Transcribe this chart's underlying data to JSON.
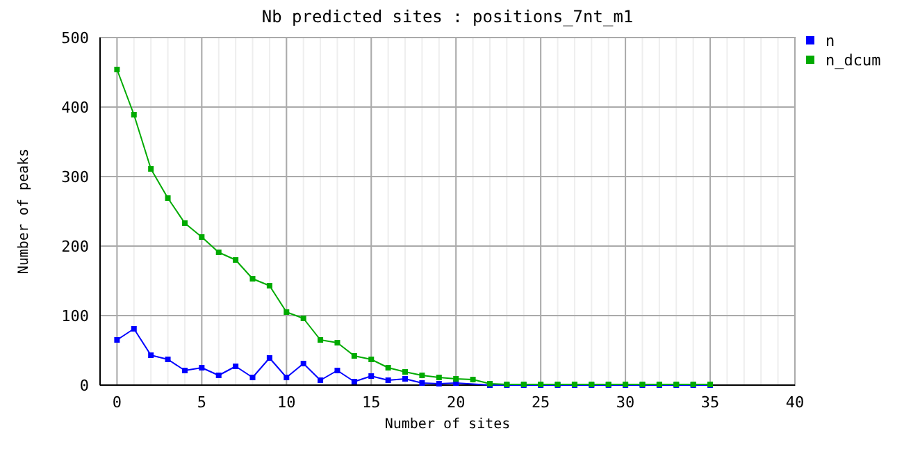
{
  "chart_data": {
    "type": "line",
    "title": "Nb predicted sites : positions_7nt_m1",
    "xlabel": "Number of sites",
    "ylabel": "Number of peaks",
    "x": [
      0,
      1,
      2,
      3,
      4,
      5,
      6,
      7,
      8,
      9,
      10,
      11,
      12,
      13,
      14,
      15,
      16,
      17,
      18,
      19,
      20,
      21,
      22,
      23,
      24,
      25,
      26,
      27,
      28,
      29,
      30,
      31,
      32,
      33,
      34,
      35
    ],
    "series": [
      {
        "name": "n",
        "color": "#0000ff",
        "values": [
          65,
          81,
          43,
          37,
          21,
          25,
          14,
          27,
          11,
          39,
          11,
          31,
          7,
          21,
          5,
          13,
          7,
          9,
          3,
          2,
          3,
          null,
          0,
          0,
          0,
          0,
          0,
          0,
          0,
          0,
          0,
          0,
          0,
          0,
          0,
          0
        ]
      },
      {
        "name": "n_dcum",
        "color": "#00aa00",
        "values": [
          454,
          389,
          311,
          269,
          233,
          213,
          191,
          180,
          153,
          143,
          105,
          96,
          65,
          61,
          42,
          37,
          25,
          19,
          14,
          11,
          9,
          8,
          2,
          1,
          1,
          1,
          1,
          1,
          1,
          1,
          1,
          1,
          1,
          1,
          1,
          1
        ]
      }
    ],
    "xlim": [
      -1,
      40
    ],
    "xticks": [
      0,
      5,
      10,
      15,
      20,
      25,
      30,
      35,
      40
    ],
    "ylim": [
      0,
      500
    ],
    "yticks": [
      0,
      100,
      200,
      300,
      400,
      500
    ],
    "grid": true,
    "legend": "top right",
    "marker": "square",
    "line_style": "solid"
  }
}
